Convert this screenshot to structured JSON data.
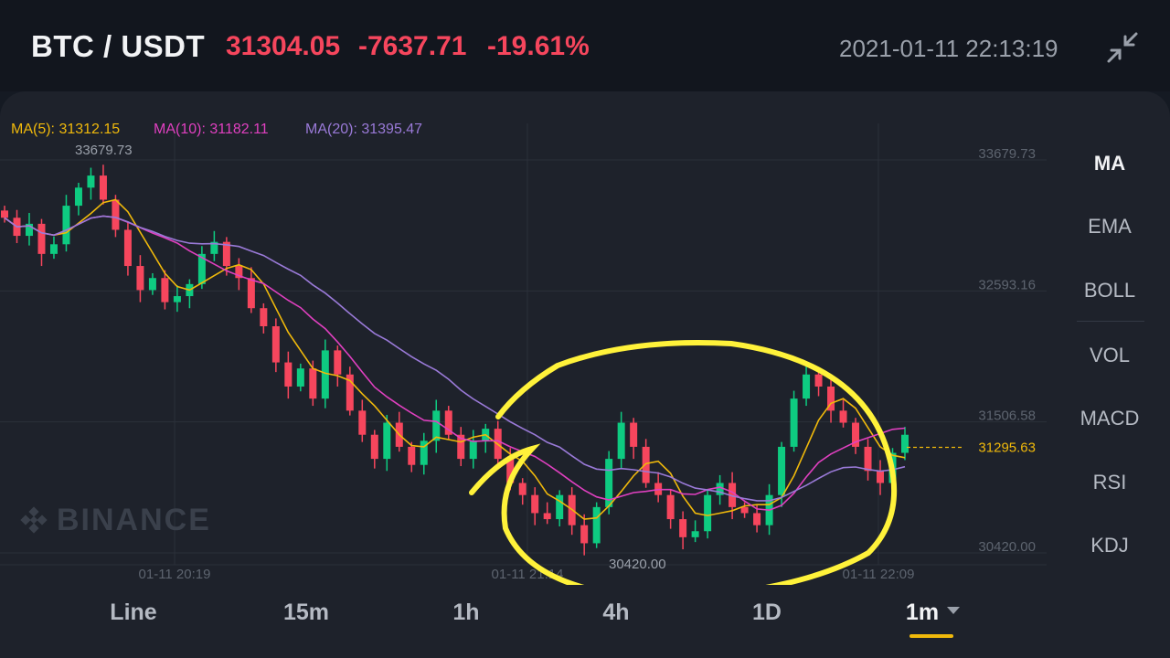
{
  "header": {
    "pair": "BTC / USDT",
    "price": "31304.05",
    "change": "-7637.71",
    "change_pct": "-19.61%",
    "datetime": "2021-01-11 22:13:19"
  },
  "ma_legend": [
    {
      "label": "MA(5): 31312.15",
      "color": "#f0b90b"
    },
    {
      "label": "MA(10): 31182.11",
      "color": "#e040c0"
    },
    {
      "label": "MA(20): 31395.47",
      "color": "#9a7ad8"
    }
  ],
  "watermark": "BINANCE",
  "indicators": [
    "MA",
    "EMA",
    "BOLL",
    "VOL",
    "MACD",
    "RSI",
    "KDJ"
  ],
  "active_indicator": "MA",
  "timeframes": [
    "Line",
    "15m",
    "1h",
    "4h",
    "1D",
    "1m"
  ],
  "active_timeframe": "1m",
  "colors": {
    "up": "#0ecb81",
    "down": "#f6465d",
    "ma5": "#f0b90b",
    "ma10": "#e040c0",
    "ma20": "#9a7ad8",
    "annotation": "#fff23a"
  },
  "chart_data": {
    "type": "candlestick",
    "y_ticks": [
      "33679.73",
      "32593.16",
      "31506.58",
      "30420.00"
    ],
    "x_ticks": [
      "01-11 20:19",
      "01-11 21:14",
      "01-11 22:09"
    ],
    "high_label": "33679.73",
    "low_label": "30420.00",
    "current_price_label": "31295.63",
    "ylim": [
      30420.0,
      33679.73
    ],
    "close": [
      33200,
      33050,
      33150,
      32900,
      32980,
      33300,
      33450,
      33550,
      33350,
      33100,
      32800,
      32600,
      32700,
      32500,
      32550,
      32650,
      32900,
      33000,
      32800,
      32700,
      32450,
      32300,
      32000,
      31800,
      31950,
      31700,
      32100,
      31900,
      31600,
      31400,
      31200,
      31500,
      31300,
      31150,
      31350,
      31600,
      31400,
      31200,
      31350,
      31450,
      31200,
      31000,
      30900,
      30750,
      30700,
      30900,
      30650,
      30500,
      30800,
      31200,
      31500,
      31300,
      31000,
      30900,
      30700,
      30550,
      30600,
      30900,
      31000,
      30800,
      30750,
      30650,
      30900,
      31300,
      31700,
      31900,
      31800,
      31600,
      31500,
      31300,
      31100,
      31000,
      31250,
      31400
    ]
  }
}
